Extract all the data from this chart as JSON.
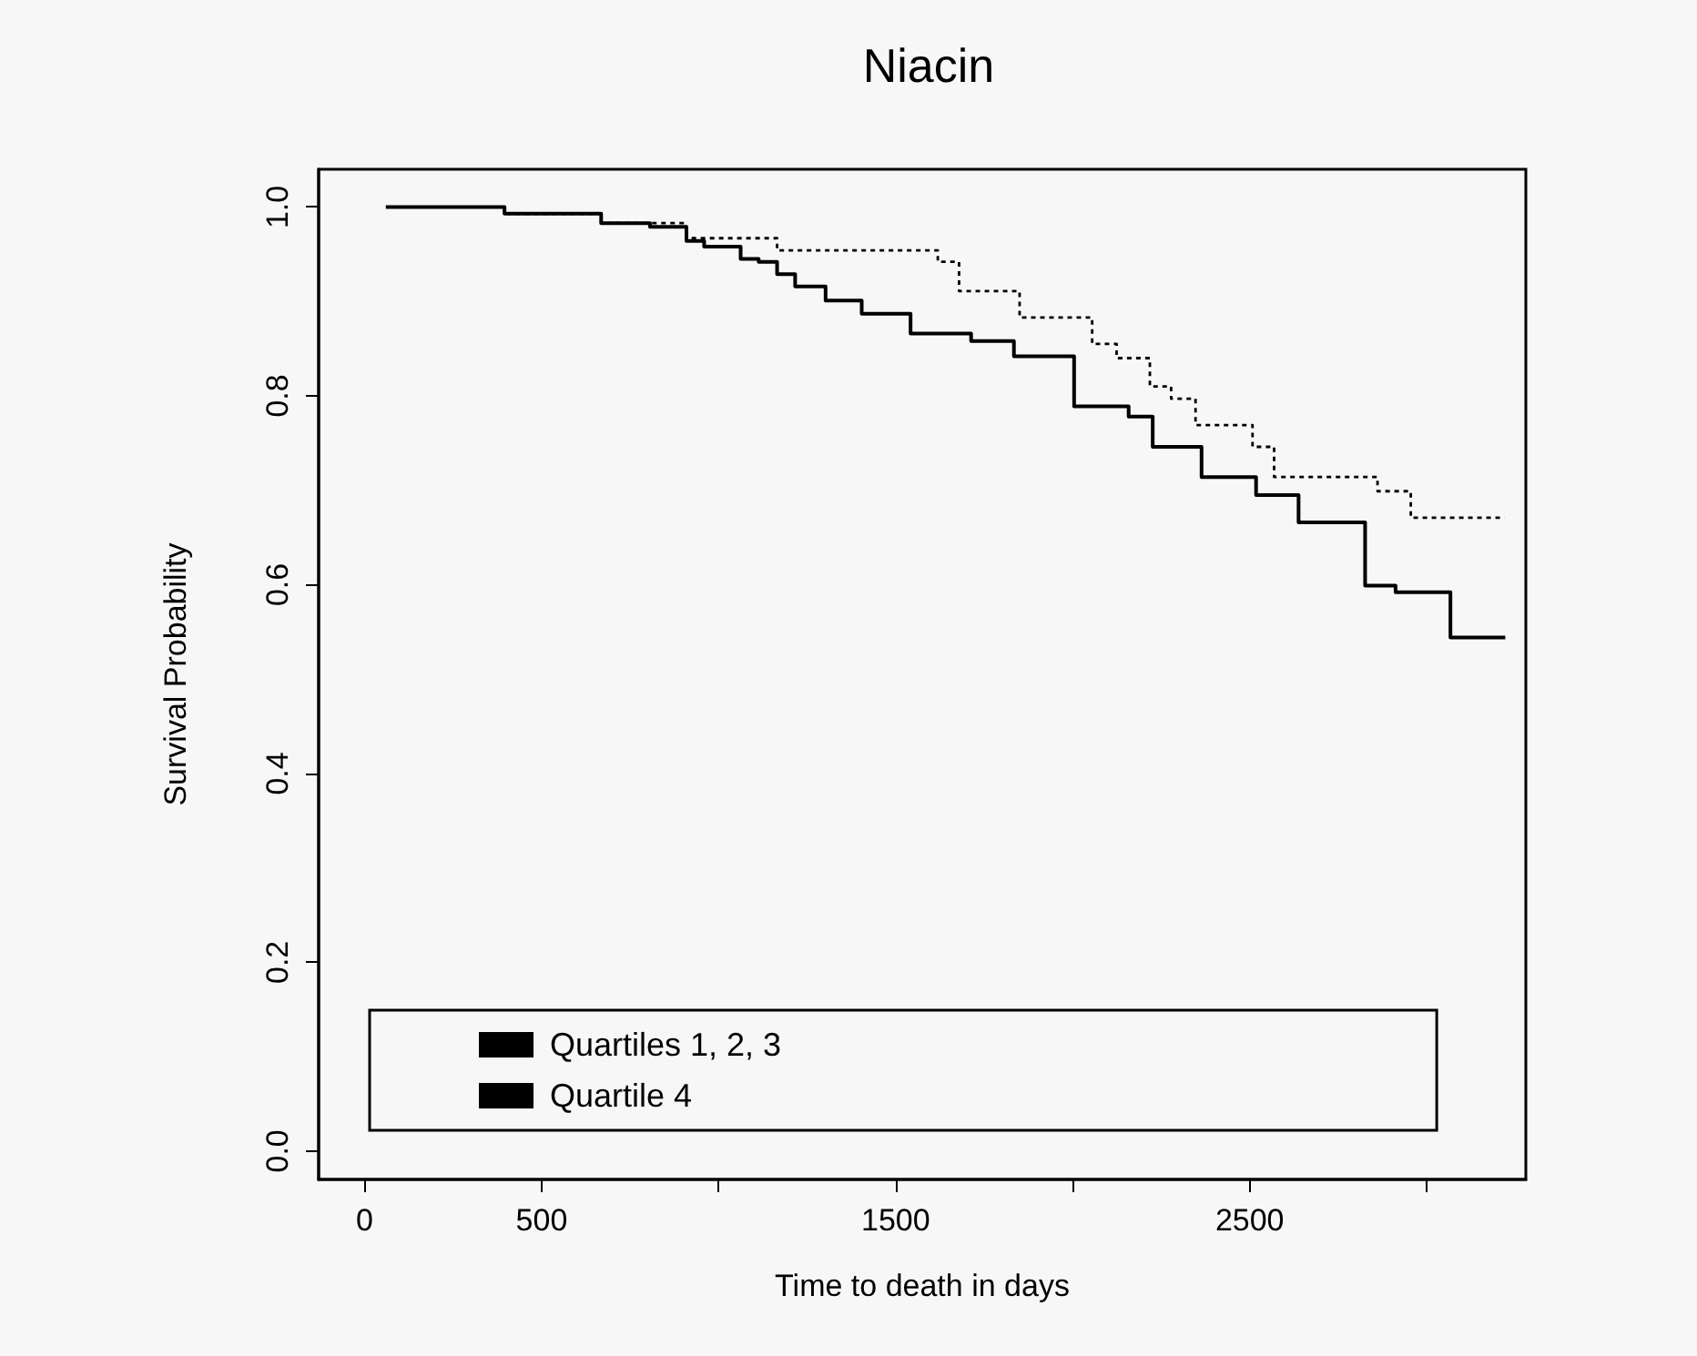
{
  "chart_data": {
    "type": "step",
    "title": "Niacin",
    "xlabel": "Time to death in days",
    "ylabel": "Survival Probability",
    "xlim": [
      -130,
      3280
    ],
    "ylim": [
      -0.03,
      1.04
    ],
    "xticks": [
      0,
      500,
      {
        "value": 1000,
        "label": null
      },
      1500,
      {
        "value": 2000,
        "label": null
      },
      2500,
      {
        "value": 3000,
        "label": null
      }
    ],
    "yticks": [
      {
        "value": 0,
        "label": "0.0"
      },
      0.2,
      0.4,
      0.6,
      0.8,
      {
        "value": 1,
        "label": "1.0"
      }
    ],
    "grid": false,
    "legend": "bottom",
    "marker": "none",
    "series": [
      {
        "name": "Quartiles 1, 2, 3",
        "color": "#000000",
        "line_style": "solid",
        "x": [
          60,
          395,
          668,
          806,
          909,
          959,
          1045,
          1062,
          1113,
          1165,
          1216,
          1302,
          1362,
          1404,
          1542,
          1713,
          1834,
          2004,
          2158,
          2226,
          2364,
          2518,
          2638,
          2826,
          2912,
          3067,
          3222
        ],
        "values": [
          1.0,
          0.993,
          0.983,
          0.979,
          0.964,
          0.958,
          0.958,
          0.945,
          0.942,
          0.929,
          0.916,
          0.901,
          0.901,
          0.887,
          0.866,
          0.858,
          0.842,
          0.789,
          0.778,
          0.746,
          0.714,
          0.695,
          0.666,
          0.599,
          0.592,
          0.544,
          0.544
        ]
      },
      {
        "name": "Quartile 4",
        "color": "#000000",
        "line_style": "dotted",
        "x": [
          60,
          395,
          668,
          908,
          1165,
          1619,
          1679,
          1850,
          2055,
          2124,
          2218,
          2278,
          2347,
          2508,
          2569,
          2861,
          2955,
          3220
        ],
        "values": [
          1.0,
          0.993,
          0.983,
          0.967,
          0.954,
          0.942,
          0.911,
          0.883,
          0.855,
          0.84,
          0.81,
          0.797,
          0.769,
          0.746,
          0.714,
          0.699,
          0.671,
          0.671
        ]
      }
    ]
  }
}
